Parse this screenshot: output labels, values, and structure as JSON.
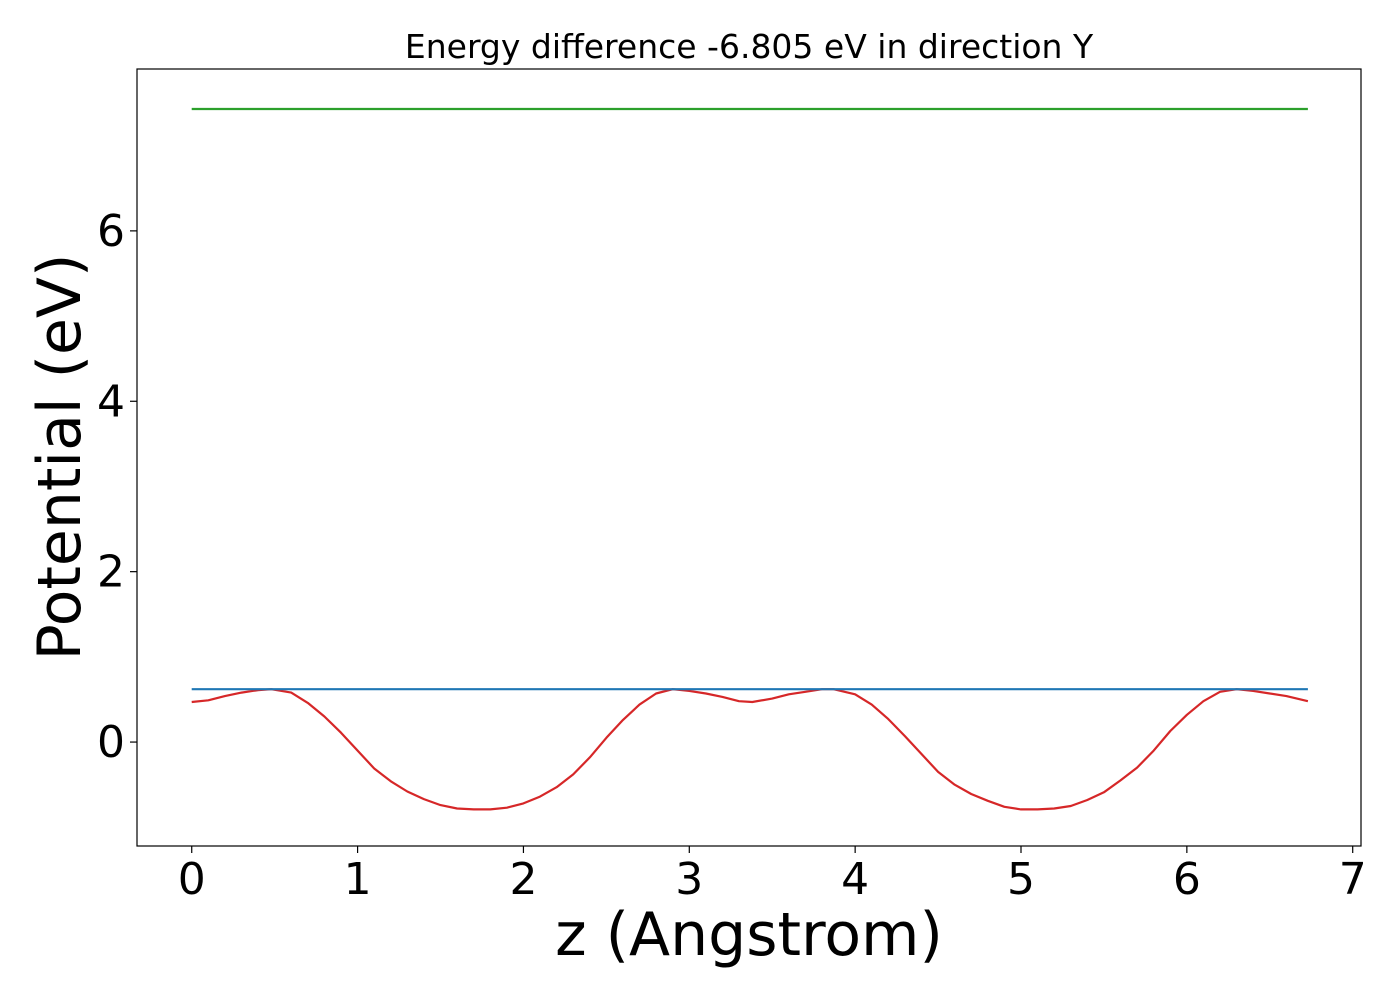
{
  "chart_data": {
    "type": "line",
    "title": "Energy difference -6.805 eV in direction Y",
    "xlabel": "z (Angstrom)",
    "ylabel": "Potential (eV)",
    "xlim": [
      -0.33,
      7.05
    ],
    "ylim": [
      -1.22,
      7.9
    ],
    "xticks": [
      0,
      1,
      2,
      3,
      4,
      5,
      6,
      7
    ],
    "yticks": [
      0,
      2,
      4,
      6
    ],
    "grid": false,
    "legend": "none",
    "series": [
      {
        "color": "#d62728",
        "style": "solid",
        "x": [
          0.0,
          0.1,
          0.2,
          0.3,
          0.4,
          0.48,
          0.6,
          0.7,
          0.8,
          0.9,
          1.0,
          1.1,
          1.2,
          1.3,
          1.4,
          1.5,
          1.6,
          1.7,
          1.8,
          1.9,
          2.0,
          2.1,
          2.2,
          2.3,
          2.4,
          2.5,
          2.6,
          2.7,
          2.8,
          2.9,
          3.0,
          3.1,
          3.2,
          3.3,
          3.38,
          3.5,
          3.6,
          3.7,
          3.8,
          3.87,
          4.0,
          4.1,
          4.2,
          4.3,
          4.4,
          4.5,
          4.6,
          4.7,
          4.8,
          4.9,
          5.0,
          5.1,
          5.2,
          5.3,
          5.4,
          5.5,
          5.6,
          5.7,
          5.8,
          5.9,
          6.0,
          6.1,
          6.2,
          6.3,
          6.4,
          6.5,
          6.6,
          6.73
        ],
        "y": [
          0.47,
          0.49,
          0.54,
          0.58,
          0.61,
          0.62,
          0.58,
          0.46,
          0.3,
          0.11,
          -0.1,
          -0.31,
          -0.46,
          -0.58,
          -0.67,
          -0.74,
          -0.78,
          -0.79,
          -0.79,
          -0.77,
          -0.72,
          -0.64,
          -0.53,
          -0.38,
          -0.18,
          0.05,
          0.26,
          0.44,
          0.57,
          0.62,
          0.6,
          0.57,
          0.53,
          0.48,
          0.47,
          0.51,
          0.56,
          0.59,
          0.62,
          0.62,
          0.56,
          0.44,
          0.27,
          0.07,
          -0.14,
          -0.35,
          -0.5,
          -0.61,
          -0.69,
          -0.76,
          -0.79,
          -0.79,
          -0.78,
          -0.75,
          -0.68,
          -0.59,
          -0.45,
          -0.3,
          -0.1,
          0.13,
          0.32,
          0.48,
          0.59,
          0.62,
          0.6,
          0.57,
          0.54,
          0.48
        ]
      },
      {
        "color": "#1f77b4",
        "style": "solid",
        "x": [
          0.0,
          6.73
        ],
        "y": [
          0.62,
          0.62
        ]
      },
      {
        "color": "#2ca02c",
        "style": "solid",
        "x": [
          0.0,
          6.73
        ],
        "y": [
          7.43,
          7.43
        ]
      }
    ]
  }
}
